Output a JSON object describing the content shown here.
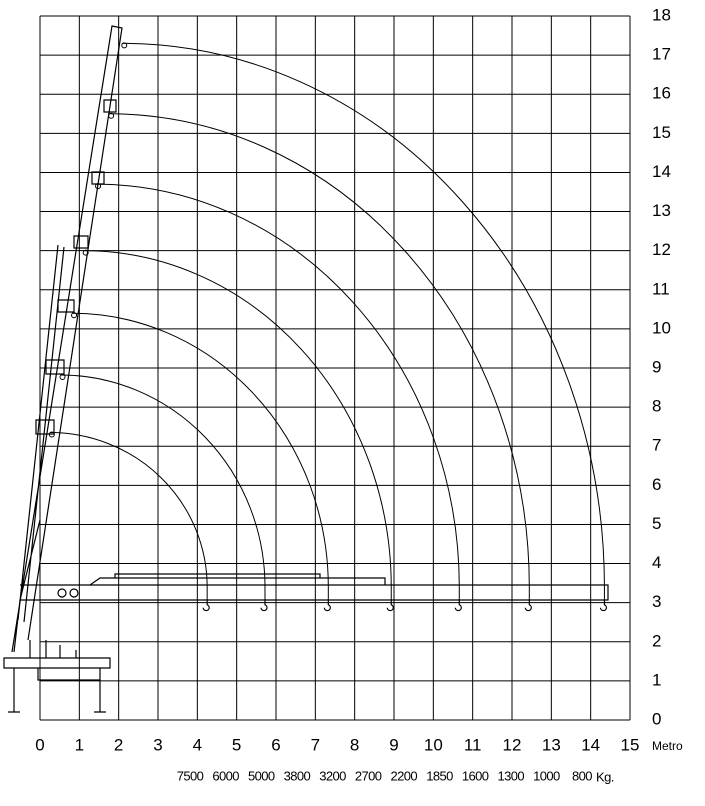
{
  "chart_data": {
    "type": "reach",
    "xlim": [
      0,
      15
    ],
    "ylim": [
      0,
      18
    ],
    "xticks": [
      0,
      1,
      2,
      3,
      4,
      5,
      6,
      7,
      8,
      9,
      10,
      11,
      12,
      13,
      14,
      15
    ],
    "yticks": [
      0,
      1,
      2,
      3,
      4,
      5,
      6,
      7,
      8,
      9,
      10,
      11,
      12,
      13,
      14,
      15,
      16,
      17,
      18
    ],
    "x_unit": "Metro",
    "loads": [
      7500,
      6000,
      5000,
      3800,
      3200,
      2700,
      2200,
      1850,
      1600,
      1300,
      1000,
      800
    ],
    "load_unit": "Kg.",
    "grid": true,
    "color": "#000000",
    "x": [
      4.25,
      5.72,
      7.33,
      8.93,
      10.66,
      12.44,
      14.35
    ],
    "values": [
      7.35,
      8.82,
      10.4,
      12.0,
      13.7,
      15.5,
      17.3
    ]
  }
}
